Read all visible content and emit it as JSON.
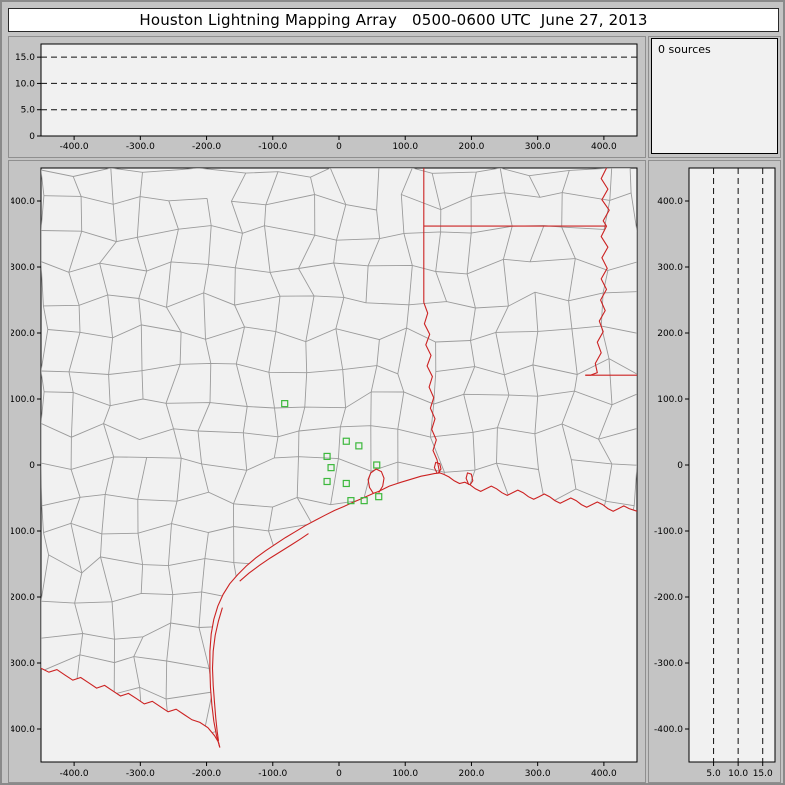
{
  "title": "Houston Lightning Mapping Array   0500-0600 UTC  June 27, 2013",
  "sources_label": "0 sources",
  "colors": {
    "window_bg": "#c4c4c4",
    "plot_bg": "#f1f1f1",
    "frame": "#000000",
    "grid_dash": "#111111",
    "county_line": "#9b9b9b",
    "state_border": "#cc2222",
    "station": "#3cb83c",
    "text": "#000000"
  },
  "chart_data": [
    {
      "id": "ew_altitude",
      "panel": "top",
      "type": "scatter",
      "xlabel": "",
      "ylabel": "",
      "xlim": [
        -450,
        450
      ],
      "ylim": [
        0,
        17.5
      ],
      "x_tick_values": [
        -400,
        -300,
        -200,
        -100,
        0,
        100,
        200,
        300,
        400
      ],
      "x_tick_labels": [
        "-400.0",
        "-300.0",
        "-200.0",
        "-100.0",
        "0",
        "100.0",
        "200.0",
        "300.0",
        "400.0"
      ],
      "y_tick_values": [
        0,
        5,
        10,
        15
      ],
      "y_tick_labels": [
        "0",
        "5.0",
        "10.0",
        "15.0"
      ],
      "gridlines_y": [
        5,
        10,
        15
      ],
      "grid_style": "dashed",
      "points": []
    },
    {
      "id": "source_count",
      "panel": "top-right",
      "type": "text",
      "label": "0 sources"
    },
    {
      "id": "plan_view_map",
      "panel": "main",
      "type": "scatter",
      "xlim": [
        -450,
        450
      ],
      "ylim": [
        -450,
        450
      ],
      "x_tick_values": [
        -400,
        -300,
        -200,
        -100,
        0,
        100,
        200,
        300,
        400
      ],
      "x_tick_labels": [
        "-400.0",
        "-300.0",
        "-200.0",
        "-100.0",
        "0",
        "100.0",
        "200.0",
        "300.0",
        "400.0"
      ],
      "y_tick_values": [
        -400,
        -300,
        -200,
        -100,
        0,
        100,
        200,
        300,
        400
      ],
      "y_tick_labels": [
        "-400.0",
        "-300.0",
        "-200.0",
        "-100.0",
        "0",
        "100.0",
        "200.0",
        "300.0",
        "400.0"
      ],
      "station_marker": "open-square",
      "stations": [
        [
          -82,
          93
        ],
        [
          11,
          36
        ],
        [
          30,
          29
        ],
        [
          -18,
          13
        ],
        [
          -12,
          -4
        ],
        [
          -18,
          -25
        ],
        [
          11,
          -28
        ],
        [
          57,
          0
        ],
        [
          18,
          -54
        ],
        [
          38,
          -54
        ],
        [
          60,
          -48
        ]
      ],
      "map_geometry": {
        "state_borders": [
          [
            [
              128,
              450
            ],
            [
              128,
              246
            ]
          ],
          [
            [
              128,
              246
            ],
            [
              134,
              230
            ],
            [
              129,
              214
            ],
            [
              137,
              198
            ],
            [
              131,
              182
            ],
            [
              139,
              166
            ],
            [
              133,
              150
            ],
            [
              141,
              134
            ],
            [
              136,
              118
            ],
            [
              143,
              102
            ],
            [
              138,
              86
            ],
            [
              145,
              70
            ],
            [
              140,
              54
            ],
            [
              147,
              38
            ],
            [
              142,
              22
            ],
            [
              148,
              8
            ],
            [
              152,
              -12
            ]
          ],
          [
            [
              128,
              362
            ],
            [
              404,
              362
            ]
          ],
          [
            [
              404,
              450
            ],
            [
              396,
              434
            ],
            [
              406,
              418
            ],
            [
              397,
              402
            ],
            [
              408,
              386
            ],
            [
              399,
              370
            ],
            [
              404,
              362
            ],
            [
              396,
              346
            ],
            [
              406,
              330
            ],
            [
              397,
              314
            ],
            [
              405,
              298
            ],
            [
              396,
              282
            ],
            [
              404,
              266
            ],
            [
              395,
              250
            ],
            [
              402,
              234
            ],
            [
              393,
              218
            ],
            [
              399,
              202
            ],
            [
              390,
              186
            ],
            [
              396,
              170
            ],
            [
              387,
              154
            ],
            [
              390,
              140
            ],
            [
              380,
              136
            ],
            [
              372,
              136
            ]
          ],
          [
            [
              372,
              136
            ],
            [
              450,
              136
            ]
          ]
        ],
        "coastline": [
          [
            -180,
            -428
          ],
          [
            -185,
            -410
          ],
          [
            -189,
            -388
          ],
          [
            -192,
            -364
          ],
          [
            -194,
            -338
          ],
          [
            -195,
            -310
          ],
          [
            -195,
            -282
          ],
          [
            -193,
            -256
          ],
          [
            -189,
            -234
          ],
          [
            -183,
            -214
          ],
          [
            -175,
            -196
          ],
          [
            -165,
            -180
          ],
          [
            -153,
            -166
          ],
          [
            -140,
            -153
          ],
          [
            -126,
            -141
          ],
          [
            -111,
            -130
          ],
          [
            -96,
            -120
          ],
          [
            -81,
            -110
          ],
          [
            -66,
            -101
          ],
          [
            -51,
            -92
          ],
          [
            -36,
            -84
          ],
          [
            -21,
            -76
          ],
          [
            -7,
            -69
          ],
          [
            7,
            -63
          ],
          [
            20,
            -57
          ],
          [
            32,
            -52
          ],
          [
            43,
            -47
          ],
          [
            52,
            -43
          ],
          [
            60,
            -40
          ],
          [
            68,
            -36
          ],
          [
            76,
            -32
          ],
          [
            85,
            -29
          ],
          [
            94,
            -26
          ],
          [
            104,
            -23
          ],
          [
            114,
            -20
          ],
          [
            124,
            -17
          ],
          [
            134,
            -15
          ],
          [
            144,
            -13
          ],
          [
            152,
            -12
          ],
          [
            158,
            -14
          ],
          [
            166,
            -18
          ],
          [
            174,
            -24
          ],
          [
            182,
            -28
          ],
          [
            190,
            -26
          ],
          [
            198,
            -30
          ],
          [
            206,
            -36
          ],
          [
            214,
            -40
          ],
          [
            222,
            -36
          ],
          [
            230,
            -32
          ],
          [
            238,
            -36
          ],
          [
            246,
            -42
          ],
          [
            254,
            -46
          ],
          [
            262,
            -42
          ],
          [
            270,
            -38
          ],
          [
            278,
            -42
          ],
          [
            286,
            -48
          ],
          [
            294,
            -52
          ],
          [
            302,
            -48
          ],
          [
            310,
            -44
          ],
          [
            318,
            -48
          ],
          [
            326,
            -54
          ],
          [
            334,
            -58
          ],
          [
            342,
            -54
          ],
          [
            350,
            -50
          ],
          [
            358,
            -54
          ],
          [
            366,
            -60
          ],
          [
            374,
            -64
          ],
          [
            382,
            -60
          ],
          [
            390,
            -56
          ],
          [
            398,
            -60
          ],
          [
            406,
            -66
          ],
          [
            414,
            -70
          ],
          [
            422,
            -66
          ],
          [
            430,
            -62
          ],
          [
            438,
            -66
          ],
          [
            450,
            -70
          ]
        ],
        "rio_grande": [
          [
            -450,
            -308
          ],
          [
            -438,
            -314
          ],
          [
            -426,
            -310
          ],
          [
            -414,
            -318
          ],
          [
            -402,
            -326
          ],
          [
            -390,
            -322
          ],
          [
            -378,
            -330
          ],
          [
            -366,
            -338
          ],
          [
            -354,
            -334
          ],
          [
            -342,
            -342
          ],
          [
            -330,
            -350
          ],
          [
            -318,
            -346
          ],
          [
            -306,
            -354
          ],
          [
            -294,
            -362
          ],
          [
            -282,
            -358
          ],
          [
            -270,
            -366
          ],
          [
            -258,
            -374
          ],
          [
            -246,
            -370
          ],
          [
            -234,
            -378
          ],
          [
            -222,
            -386
          ],
          [
            -210,
            -390
          ],
          [
            -198,
            -398
          ],
          [
            -188,
            -410
          ],
          [
            -182,
            -420
          ],
          [
            -180,
            -428
          ]
        ],
        "islands": [
          [
            [
              -176,
              -216
            ],
            [
              -182,
              -236
            ],
            [
              -187,
              -258
            ],
            [
              -190,
              -282
            ],
            [
              -191,
              -308
            ],
            [
              -190,
              -334
            ],
            [
              -188,
              -360
            ],
            [
              -186,
              -384
            ],
            [
              -184,
              -404
            ],
            [
              -182,
              -418
            ]
          ],
          [
            [
              -150,
              -176
            ],
            [
              -136,
              -164
            ],
            [
              -120,
              -152
            ],
            [
              -104,
              -141
            ],
            [
              -88,
              -131
            ],
            [
              -72,
              -121
            ],
            [
              -58,
              -112
            ],
            [
              -46,
              -104
            ]
          ]
        ],
        "bays": [
          [
            [
              52,
              -43
            ],
            [
              46,
              -34
            ],
            [
              44,
              -22
            ],
            [
              48,
              -12
            ],
            [
              56,
              -6
            ],
            [
              64,
              -10
            ],
            [
              68,
              -20
            ],
            [
              66,
              -32
            ],
            [
              60,
              -42
            ]
          ],
          [
            [
              148,
              -12
            ],
            [
              144,
              -4
            ],
            [
              146,
              4
            ],
            [
              152,
              2
            ],
            [
              154,
              -6
            ],
            [
              150,
              -12
            ]
          ],
          [
            [
              196,
              -30
            ],
            [
              192,
              -20
            ],
            [
              194,
              -12
            ],
            [
              200,
              -14
            ],
            [
              202,
              -24
            ],
            [
              198,
              -30
            ]
          ]
        ]
      }
    },
    {
      "id": "ns_altitude",
      "panel": "right",
      "type": "scatter",
      "xlabel": "",
      "ylabel": "",
      "xlim": [
        0,
        17.5
      ],
      "ylim": [
        -450,
        450
      ],
      "x_tick_values": [
        5,
        10,
        15
      ],
      "x_tick_labels": [
        "5.0",
        "10.0",
        "15.0"
      ],
      "y_tick_values": [
        -400,
        -300,
        -200,
        -100,
        0,
        100,
        200,
        300,
        400
      ],
      "y_tick_labels": [
        "-400.0",
        "-300.0",
        "-200.0",
        "-100.0",
        "0",
        "100.0",
        "200.0",
        "300.0",
        "400.0"
      ],
      "gridlines_x": [
        5,
        10,
        15
      ],
      "grid_style": "dashed",
      "points": []
    }
  ]
}
